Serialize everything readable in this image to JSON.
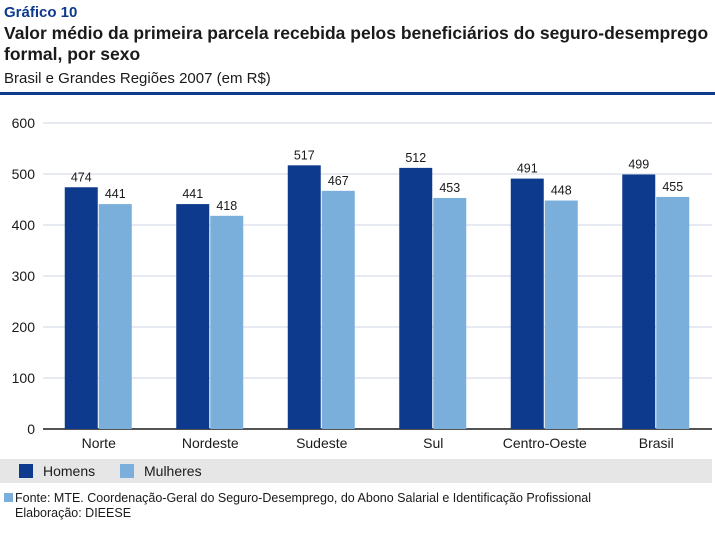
{
  "header": {
    "kicker": "Gráfico 10",
    "title": "Valor médio da primeira parcela recebida pelos beneficiários do seguro-desemprego formal, por sexo",
    "subtitle": "Brasil e Grandes Regiões 2007 (em R$)"
  },
  "chart_data": {
    "type": "bar",
    "title": "Valor médio da primeira parcela recebida pelos beneficiários do seguro-desemprego formal, por sexo",
    "subtitle": "Brasil e Grandes Regiões 2007 (em R$)",
    "categories": [
      "Norte",
      "Nordeste",
      "Sudeste",
      "Sul",
      "Centro-Oeste",
      "Brasil"
    ],
    "series": [
      {
        "name": "Homens",
        "color": "#0d3a8c",
        "values": [
          474,
          441,
          517,
          512,
          491,
          499
        ]
      },
      {
        "name": "Mulheres",
        "color": "#7aaedb",
        "values": [
          441,
          418,
          467,
          453,
          448,
          455
        ]
      }
    ],
    "ylim": [
      0,
      600
    ],
    "yticks": [
      0,
      100,
      200,
      300,
      400,
      500,
      600
    ],
    "xlabel": "",
    "ylabel": "",
    "grid": true,
    "legend_position": "bottom"
  },
  "footer": {
    "source": "Fonte: MTE. Coordenação-Geral do Seguro-Desemprego, do Abono Salarial e Identificação Profissional",
    "elaboration": "Elaboração: DIEESE"
  },
  "colors": {
    "accent": "#0d3a8c",
    "light": "#7aaedb",
    "grid": "#cfd6e6"
  }
}
